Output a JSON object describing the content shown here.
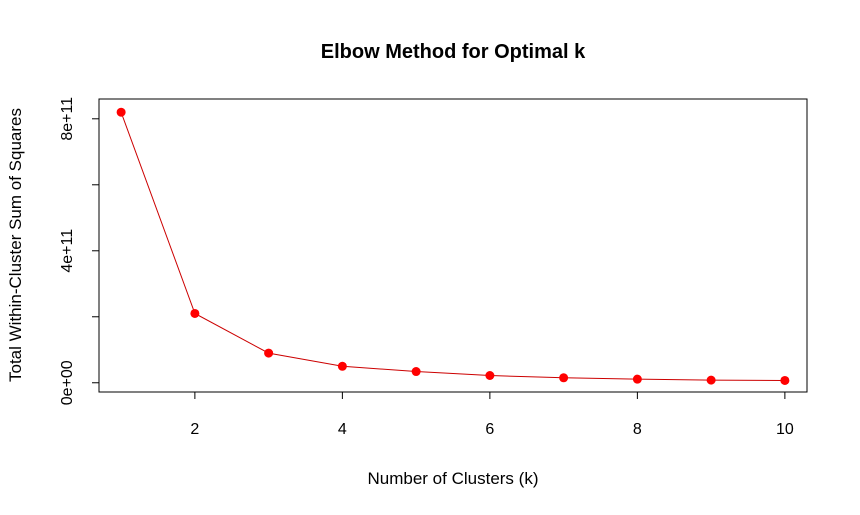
{
  "chart_data": {
    "type": "line",
    "title": "Elbow Method for Optimal k",
    "xlabel": "Number of Clusters (k)",
    "ylabel": "Total Within-Cluster Sum of Squares",
    "x": [
      1,
      2,
      3,
      4,
      5,
      6,
      7,
      8,
      9,
      10
    ],
    "series": [
      {
        "values": [
          820000000000.0,
          210000000000.0,
          90000000000.0,
          50000000000.0,
          34000000000.0,
          22000000000.0,
          15000000000.0,
          11000000000.0,
          8000000000.0,
          7000000000.0
        ],
        "color": "#ff0000",
        "line_color": "#cc0000"
      }
    ],
    "xlim": [
      0.7,
      10.3
    ],
    "ylim": [
      -28000000000.0,
      860000000000.0
    ],
    "x_ticks": [
      2,
      4,
      6,
      8,
      10
    ],
    "x_tick_labels": [
      "2",
      "4",
      "6",
      "8",
      "10"
    ],
    "y_ticks": [
      0,
      200000000000.0,
      400000000000.0,
      600000000000.0,
      800000000000.0
    ],
    "y_tick_labels": [
      "0e+00",
      "",
      "4e+11",
      "",
      "8e+11"
    ],
    "grid": false,
    "marker": "filled-circle"
  }
}
